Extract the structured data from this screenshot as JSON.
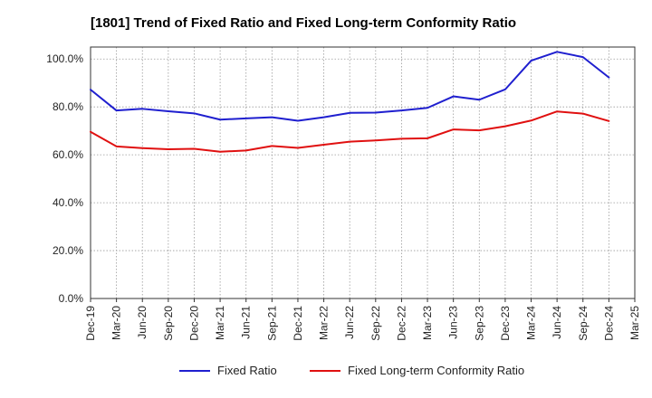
{
  "chart_data": {
    "type": "line",
    "title": "[1801]  Trend of Fixed Ratio and Fixed Long-term Conformity Ratio",
    "xlabel": "",
    "ylabel": "",
    "categories": [
      "Dec-19",
      "Mar-20",
      "Jun-20",
      "Sep-20",
      "Dec-20",
      "Mar-21",
      "Jun-21",
      "Sep-21",
      "Dec-21",
      "Mar-22",
      "Jun-22",
      "Sep-22",
      "Dec-22",
      "Mar-23",
      "Jun-23",
      "Sep-23",
      "Dec-23",
      "Mar-24",
      "Jun-24",
      "Sep-24",
      "Dec-24",
      "Mar-25"
    ],
    "y_ticks": [
      "0.0%",
      "20.0%",
      "40.0%",
      "60.0%",
      "80.0%",
      "100.0%"
    ],
    "ylim": [
      0,
      105
    ],
    "grid": true,
    "legend_position": "bottom",
    "series": [
      {
        "name": "Fixed Ratio",
        "color": "#1f1fcf",
        "values": [
          87.2,
          78.5,
          79.2,
          78.2,
          77.3,
          74.7,
          75.2,
          75.7,
          74.2,
          75.7,
          77.5,
          77.6,
          78.5,
          79.6,
          84.4,
          83.0,
          87.3,
          99.3,
          103.0,
          100.8,
          92.3,
          null
        ]
      },
      {
        "name": "Fixed Long-term Conformity Ratio",
        "color": "#e01010",
        "values": [
          69.6,
          63.5,
          62.8,
          62.3,
          62.5,
          61.3,
          61.8,
          63.7,
          62.9,
          64.2,
          65.5,
          66.0,
          66.7,
          66.9,
          70.6,
          70.2,
          71.9,
          74.3,
          78.1,
          77.2,
          74.1,
          null
        ]
      }
    ]
  }
}
